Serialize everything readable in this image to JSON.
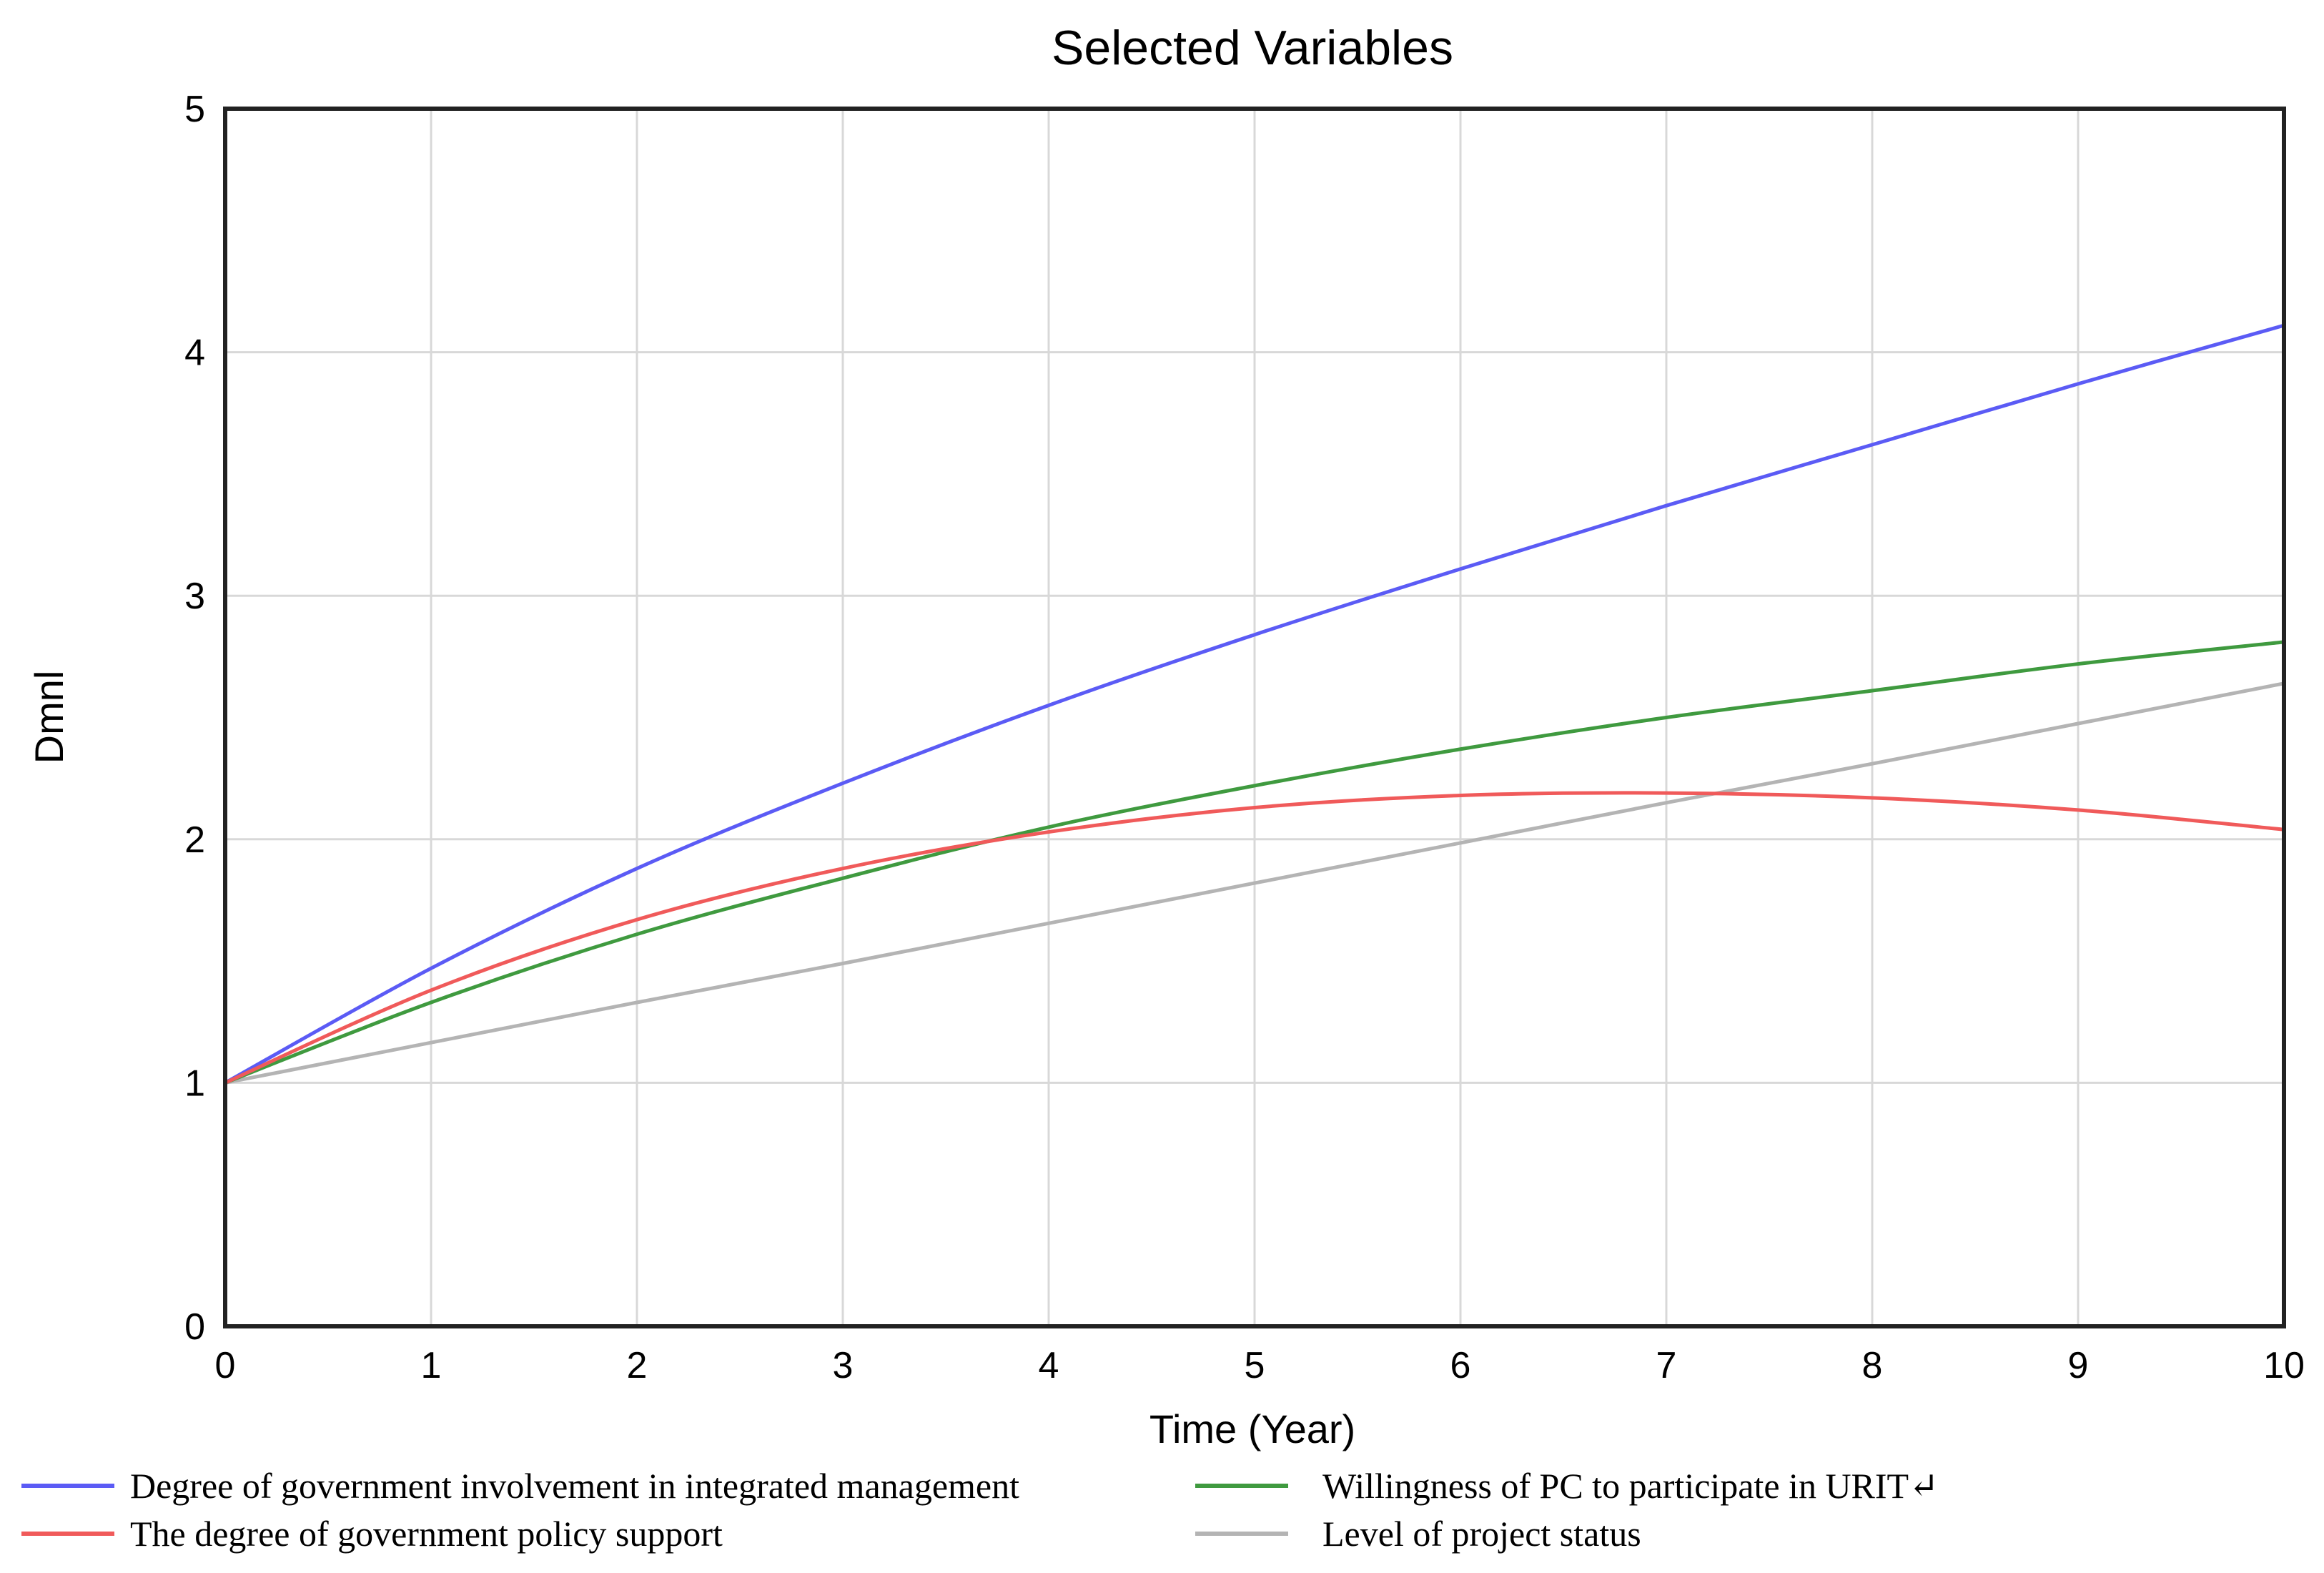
{
  "chart_data": {
    "type": "line",
    "title": "Selected Variables",
    "xlabel": "Time (Year)",
    "ylabel": "Dmnl",
    "xlim": [
      0,
      10
    ],
    "ylim": [
      0,
      5
    ],
    "x_ticks": [
      "0",
      "1",
      "2",
      "3",
      "4",
      "5",
      "6",
      "7",
      "8",
      "9",
      "10"
    ],
    "y_ticks": [
      "0",
      "1",
      "2",
      "3",
      "4",
      "5"
    ],
    "grid": true,
    "legend_position": "bottom",
    "x": [
      0,
      1,
      2,
      3,
      4,
      5,
      6,
      7,
      8,
      9,
      10
    ],
    "series": [
      {
        "name": "Degree of government involvement in integrated management",
        "color": "#5b5bf5",
        "values": [
          1.0,
          1.47,
          1.88,
          2.23,
          2.55,
          2.84,
          3.11,
          3.37,
          3.62,
          3.87,
          4.11
        ]
      },
      {
        "name": "Willingness of PC to participate in URIT↵",
        "color": "#3f9a3f",
        "values": [
          1.0,
          1.33,
          1.61,
          1.84,
          2.05,
          2.22,
          2.37,
          2.5,
          2.61,
          2.72,
          2.81
        ]
      },
      {
        "name": "The degree of government policy support",
        "color": "#f05a5a",
        "values": [
          1.0,
          1.38,
          1.67,
          1.88,
          2.03,
          2.13,
          2.18,
          2.19,
          2.17,
          2.12,
          2.04
        ]
      },
      {
        "name": "Level of project status",
        "color": "#b4b4b4",
        "values": [
          1.0,
          1.165,
          1.33,
          1.49,
          1.655,
          1.82,
          1.985,
          2.15,
          2.31,
          2.475,
          2.64
        ]
      }
    ]
  }
}
